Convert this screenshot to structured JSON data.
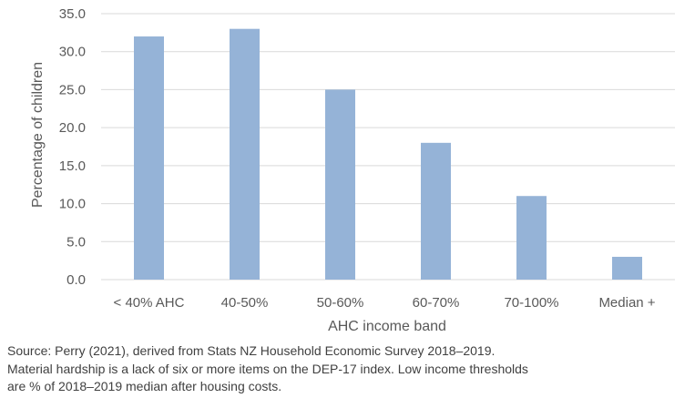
{
  "chart_data": {
    "type": "bar",
    "categories": [
      "< 40% AHC",
      "40-50%",
      "50-60%",
      "60-70%",
      "70-100%",
      "Median +"
    ],
    "values": [
      32,
      33,
      25,
      18,
      11,
      3
    ],
    "xlabel": "AHC income band",
    "ylabel": "Percentage of children",
    "ylim": [
      0,
      35
    ],
    "yticks": [
      "0.0",
      "5.0",
      "10.0",
      "15.0",
      "20.0",
      "25.0",
      "30.0",
      "35.0"
    ],
    "grid": true,
    "bar_color": "#95b3d7",
    "grid_color": "#d9d9d9"
  },
  "notes": [
    "Source: Perry (2021), derived from Stats NZ Household Economic Survey 2018–2019.",
    "Material hardship is a lack of six or more items on the DEP-17 index. Low income thresholds",
    "are % of 2018–2019 median after housing costs."
  ]
}
